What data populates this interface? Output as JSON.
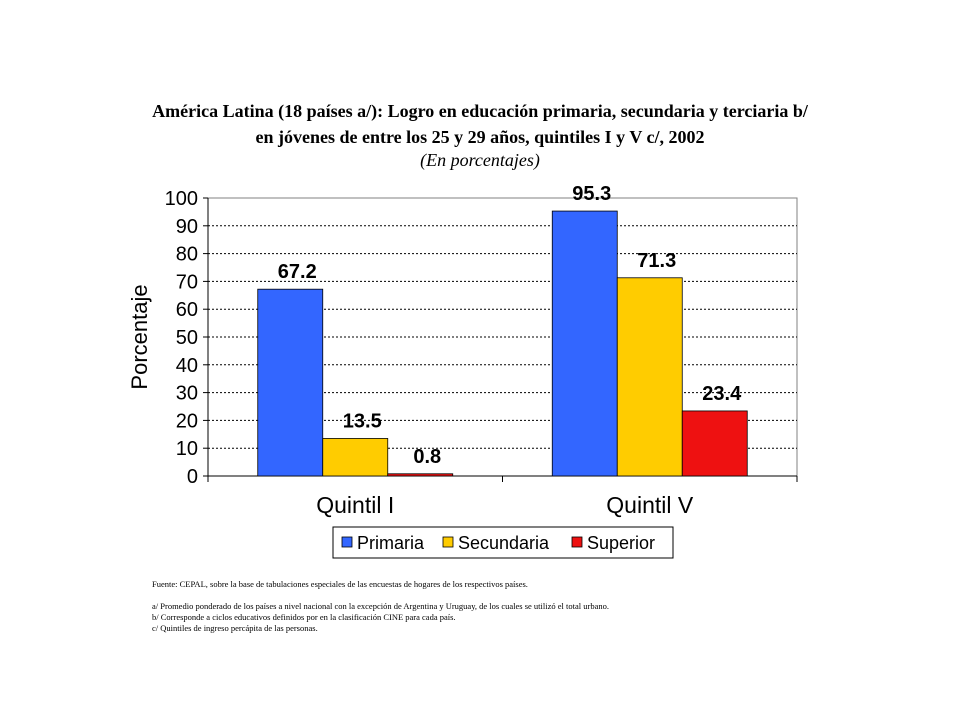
{
  "title_line1": "América Latina (18 países a/): Logro en educación  primaria, secundaria y terciaria b/",
  "title_line2": "en jóvenes de entre los 25 y 29 años, quintiles I y V c/, 2002",
  "subtitle": "(En porcentajes)",
  "chart_data": {
    "type": "bar",
    "title": "",
    "xlabel": "",
    "ylabel": "Porcentaje",
    "ylim": [
      0,
      100
    ],
    "yticks": [
      "0",
      "10",
      "20",
      "30",
      "40",
      "50",
      "60",
      "70",
      "80",
      "90",
      "100"
    ],
    "grid": true,
    "legend_position": "bottom",
    "categories": [
      "Quintil I",
      "Quintil V"
    ],
    "series": [
      {
        "name": "Primaria",
        "color": "#3366ff",
        "values": [
          67.2,
          95.3
        ],
        "labels": [
          "67.2",
          "95.3"
        ]
      },
      {
        "name": "Secundaria",
        "color": "#ffcc00",
        "values": [
          13.5,
          71.3
        ],
        "labels": [
          "13.5",
          "71.3"
        ]
      },
      {
        "name": "Superior",
        "color": "#ee1111",
        "values": [
          0.8,
          23.4
        ],
        "labels": [
          "0.8",
          "23.4"
        ]
      }
    ]
  },
  "notes": {
    "source": "Fuente: CEPAL, sobre la base de tabulaciones especiales de las encuestas de hogares de los respectivos países.",
    "a": "a/ Promedio ponderado de los países a nivel nacional con la excepción de Argentina y Uruguay, de los cuales se utilizó el total urbano.",
    "b": "b/ Corresponde a ciclos educativos definidos por en la clasificación CINE para cada país.",
    "c": "c/ Quintiles de ingreso percápita de las personas."
  }
}
